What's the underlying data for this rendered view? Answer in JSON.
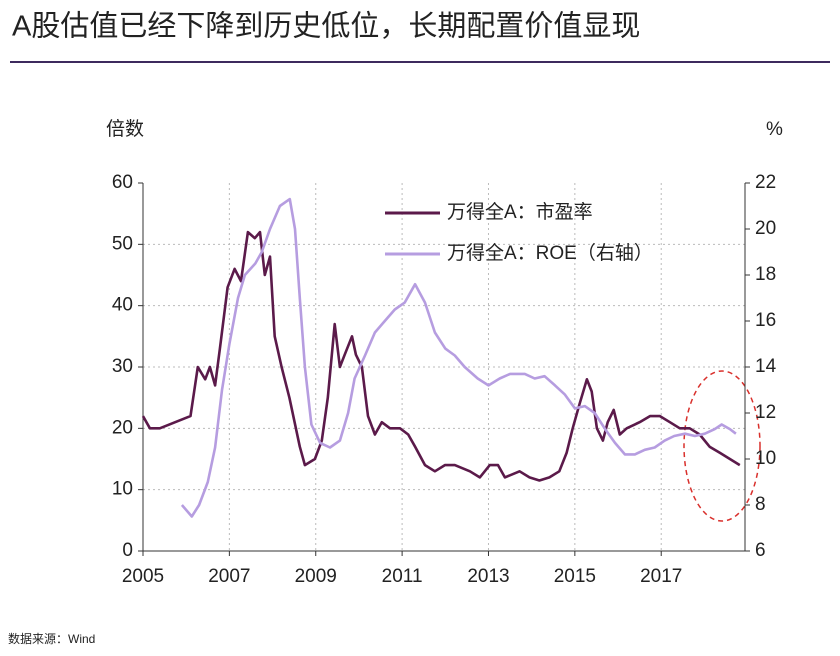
{
  "title": "A股估值已经下降到历史低位，长期配置价值显现",
  "source": "数据来源：Wind",
  "chart_data": {
    "type": "line",
    "y_label": "倍数",
    "y2_label": "%",
    "xlim": [
      2005,
      2018.94
    ],
    "xticks": [
      2005,
      2007,
      2009,
      2011,
      2013,
      2015,
      2017
    ],
    "ylim": [
      0,
      60
    ],
    "yticks": [
      0,
      10,
      20,
      30,
      40,
      50,
      60
    ],
    "y2lim": [
      6,
      22
    ],
    "y2ticks": [
      6,
      8,
      10,
      12,
      14,
      16,
      18,
      20,
      22
    ],
    "grid": true,
    "legend": "top",
    "series": [
      {
        "name": "万得全A：市盈率",
        "color": "#5b1a4a",
        "x": [
          2005.0,
          2005.16,
          2005.39,
          2006.1,
          2006.27,
          2006.44,
          2006.55,
          2006.67,
          2006.78,
          2006.96,
          2007.12,
          2007.27,
          2007.43,
          2007.59,
          2007.71,
          2007.82,
          2007.94,
          2008.05,
          2008.21,
          2008.39,
          2008.63,
          2008.75,
          2008.98,
          2009.14,
          2009.28,
          2009.44,
          2009.56,
          2009.67,
          2009.84,
          2009.93,
          2010.07,
          2010.21,
          2010.37,
          2010.53,
          2010.72,
          2010.95,
          2011.14,
          2011.3,
          2011.53,
          2011.76,
          2011.99,
          2012.22,
          2012.57,
          2012.8,
          2013.03,
          2013.22,
          2013.38,
          2013.72,
          2013.95,
          2014.18,
          2014.41,
          2014.64,
          2014.81,
          2014.95,
          2015.11,
          2015.28,
          2015.39,
          2015.51,
          2015.65,
          2015.76,
          2015.9,
          2016.04,
          2016.2,
          2016.5,
          2016.74,
          2016.97,
          2017.2,
          2017.43,
          2017.66,
          2017.89,
          2018.12,
          2018.36,
          2018.59,
          2018.82
        ],
        "values": [
          22,
          20,
          20,
          22,
          30,
          28,
          30,
          27,
          33,
          43,
          46,
          44,
          52,
          51,
          52,
          45,
          48,
          35,
          30,
          25,
          17,
          14,
          15,
          18,
          25,
          37,
          30,
          32,
          35,
          32,
          30,
          22,
          19,
          21,
          20,
          20,
          19,
          17,
          14,
          13,
          14,
          14,
          13,
          12,
          14,
          14,
          12,
          13,
          12,
          11.5,
          12,
          13,
          16,
          20,
          24,
          28,
          26,
          20,
          18,
          21,
          23,
          19,
          20,
          21,
          22,
          22,
          21,
          20,
          20,
          19,
          17,
          16,
          15,
          14
        ]
      },
      {
        "name": "万得全A：ROE（右轴）",
        "color": "#b69de0",
        "axis": "y2",
        "x": [
          2005.9,
          2006.13,
          2006.3,
          2006.5,
          2006.67,
          2006.83,
          2007.0,
          2007.2,
          2007.36,
          2007.6,
          2007.75,
          2007.94,
          2008.17,
          2008.4,
          2008.52,
          2008.63,
          2008.75,
          2008.9,
          2009.1,
          2009.33,
          2009.56,
          2009.75,
          2009.9,
          2010.14,
          2010.37,
          2010.6,
          2010.83,
          2011.06,
          2011.3,
          2011.53,
          2011.76,
          2012.0,
          2012.22,
          2012.45,
          2012.75,
          2013.0,
          2013.26,
          2013.5,
          2013.84,
          2014.07,
          2014.3,
          2014.54,
          2014.77,
          2015.0,
          2015.23,
          2015.46,
          2015.7,
          2015.93,
          2016.16,
          2016.39,
          2016.62,
          2016.85,
          2017.08,
          2017.3,
          2017.55,
          2017.78,
          2018.01,
          2018.24,
          2018.4,
          2018.59,
          2018.73
        ],
        "values": [
          8,
          7.5,
          8,
          9,
          10.5,
          13,
          15,
          17,
          18,
          18.5,
          19,
          20,
          21,
          21.3,
          20,
          17,
          14,
          11.5,
          10.7,
          10.5,
          10.8,
          12,
          13.5,
          14.5,
          15.5,
          16,
          16.5,
          16.8,
          17.6,
          16.8,
          15.5,
          14.8,
          14.5,
          14,
          13.5,
          13.2,
          13.5,
          13.7,
          13.7,
          13.5,
          13.6,
          13.2,
          12.8,
          12.2,
          12.3,
          12,
          11.3,
          10.7,
          10.2,
          10.2,
          10.4,
          10.5,
          10.8,
          11,
          11.1,
          11,
          11.1,
          11.3,
          11.5,
          11.3,
          11.1
        ]
      }
    ]
  }
}
